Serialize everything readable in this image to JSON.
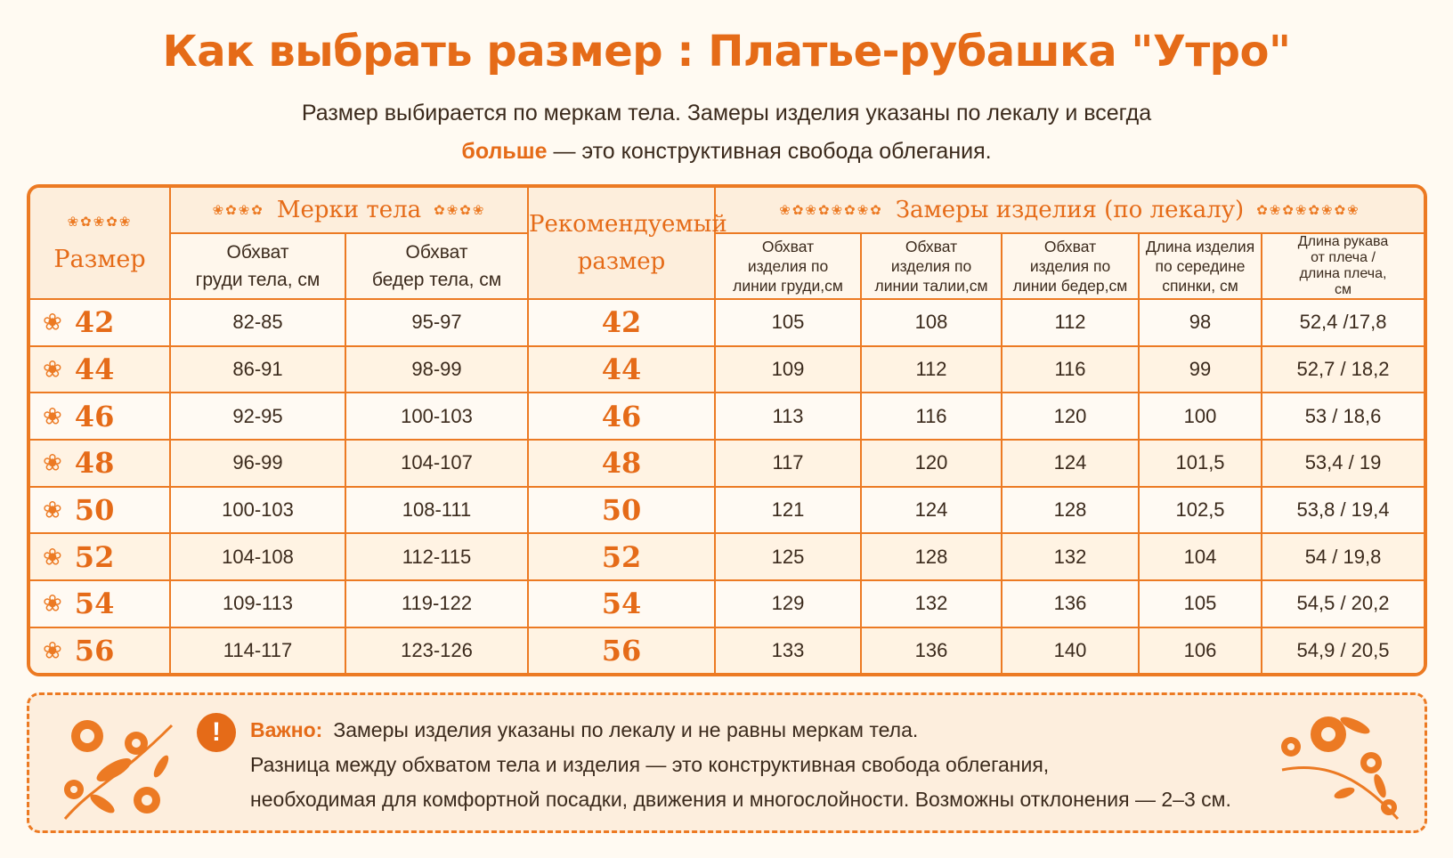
{
  "title": "Как выбрать размер :  Платье-рубашка \"Утро\"",
  "subtitle": {
    "line1": "Размер выбирается по меркам тела. Замеры изделия указаны по лекалу и всегда",
    "highlight": "больше",
    "line2_rest": " — это конструктивная свобода облегания."
  },
  "table": {
    "size_header": "Размер",
    "body_group": "Мерки тела",
    "recommended_header_l1": "Рекомендуемый",
    "recommended_header_l2": "размер",
    "garment_group": "Замеры изделия (по лекалу)",
    "columns": {
      "chest_body": [
        "Обхват",
        "груди тела, см"
      ],
      "hips_body": [
        "Обхват",
        "бедер тела, см"
      ],
      "chest_garment": [
        "Обхват",
        "изделия по",
        "линии груди,см"
      ],
      "waist_garment": [
        "Обхват",
        "изделия по",
        "линии талии,см"
      ],
      "hips_garment": [
        "Обхват",
        "изделия по",
        "линии бедер,см"
      ],
      "back_length": [
        "Длина изделия",
        "по середине",
        "спинки, см"
      ],
      "sleeve_length": [
        "Длина рукава",
        "от плеча /",
        "длина плеча,",
        "см"
      ]
    },
    "rows": [
      {
        "size": "42",
        "chest": "82-85",
        "hips": "95-97",
        "rec": "42",
        "g_chest": "105",
        "g_waist": "108",
        "g_hips": "112",
        "length": "98",
        "sleeve": "52,4 /17,8"
      },
      {
        "size": "44",
        "chest": "86-91",
        "hips": "98-99",
        "rec": "44",
        "g_chest": "109",
        "g_waist": "112",
        "g_hips": "116",
        "length": "99",
        "sleeve": "52,7 / 18,2"
      },
      {
        "size": "46",
        "chest": "92-95",
        "hips": "100-103",
        "rec": "46",
        "g_chest": "113",
        "g_waist": "116",
        "g_hips": "120",
        "length": "100",
        "sleeve": "53 / 18,6"
      },
      {
        "size": "48",
        "chest": "96-99",
        "hips": "104-107",
        "rec": "48",
        "g_chest": "117",
        "g_waist": "120",
        "g_hips": "124",
        "length": "101,5",
        "sleeve": "53,4 / 19"
      },
      {
        "size": "50",
        "chest": "100-103",
        "hips": "108-111",
        "rec": "50",
        "g_chest": "121",
        "g_waist": "124",
        "g_hips": "128",
        "length": "102,5",
        "sleeve": "53,8 / 19,4"
      },
      {
        "size": "52",
        "chest": "104-108",
        "hips": "112-115",
        "rec": "52",
        "g_chest": "125",
        "g_waist": "128",
        "g_hips": "132",
        "length": "104",
        "sleeve": "54 / 19,8"
      },
      {
        "size": "54",
        "chest": "109-113",
        "hips": "119-122",
        "rec": "54",
        "g_chest": "129",
        "g_waist": "132",
        "g_hips": "136",
        "length": "105",
        "sleeve": "54,5 / 20,2"
      },
      {
        "size": "56",
        "chest": "114-117",
        "hips": "123-126",
        "rec": "56",
        "g_chest": "133",
        "g_waist": "136",
        "g_hips": "140",
        "length": "106",
        "sleeve": "54,9 / 20,5"
      }
    ]
  },
  "note": {
    "label": "Важно:",
    "line1": "Замеры изделия указаны по лекалу и не равны меркам тела.",
    "line2": "Разница между обхватом тела и изделия — это конструктивная свобода облегания,",
    "line3": "необходимая для комфортной посадки, движения и многослойности. Возможны отклонения — 2–3 см."
  },
  "icons": {
    "row_flower": "flower-icon",
    "ornament": "floral-ornament-icon",
    "warning": "exclamation-icon"
  },
  "colors": {
    "accent": "#e56b18",
    "border": "#ec7a23",
    "background": "#fffaf2"
  }
}
